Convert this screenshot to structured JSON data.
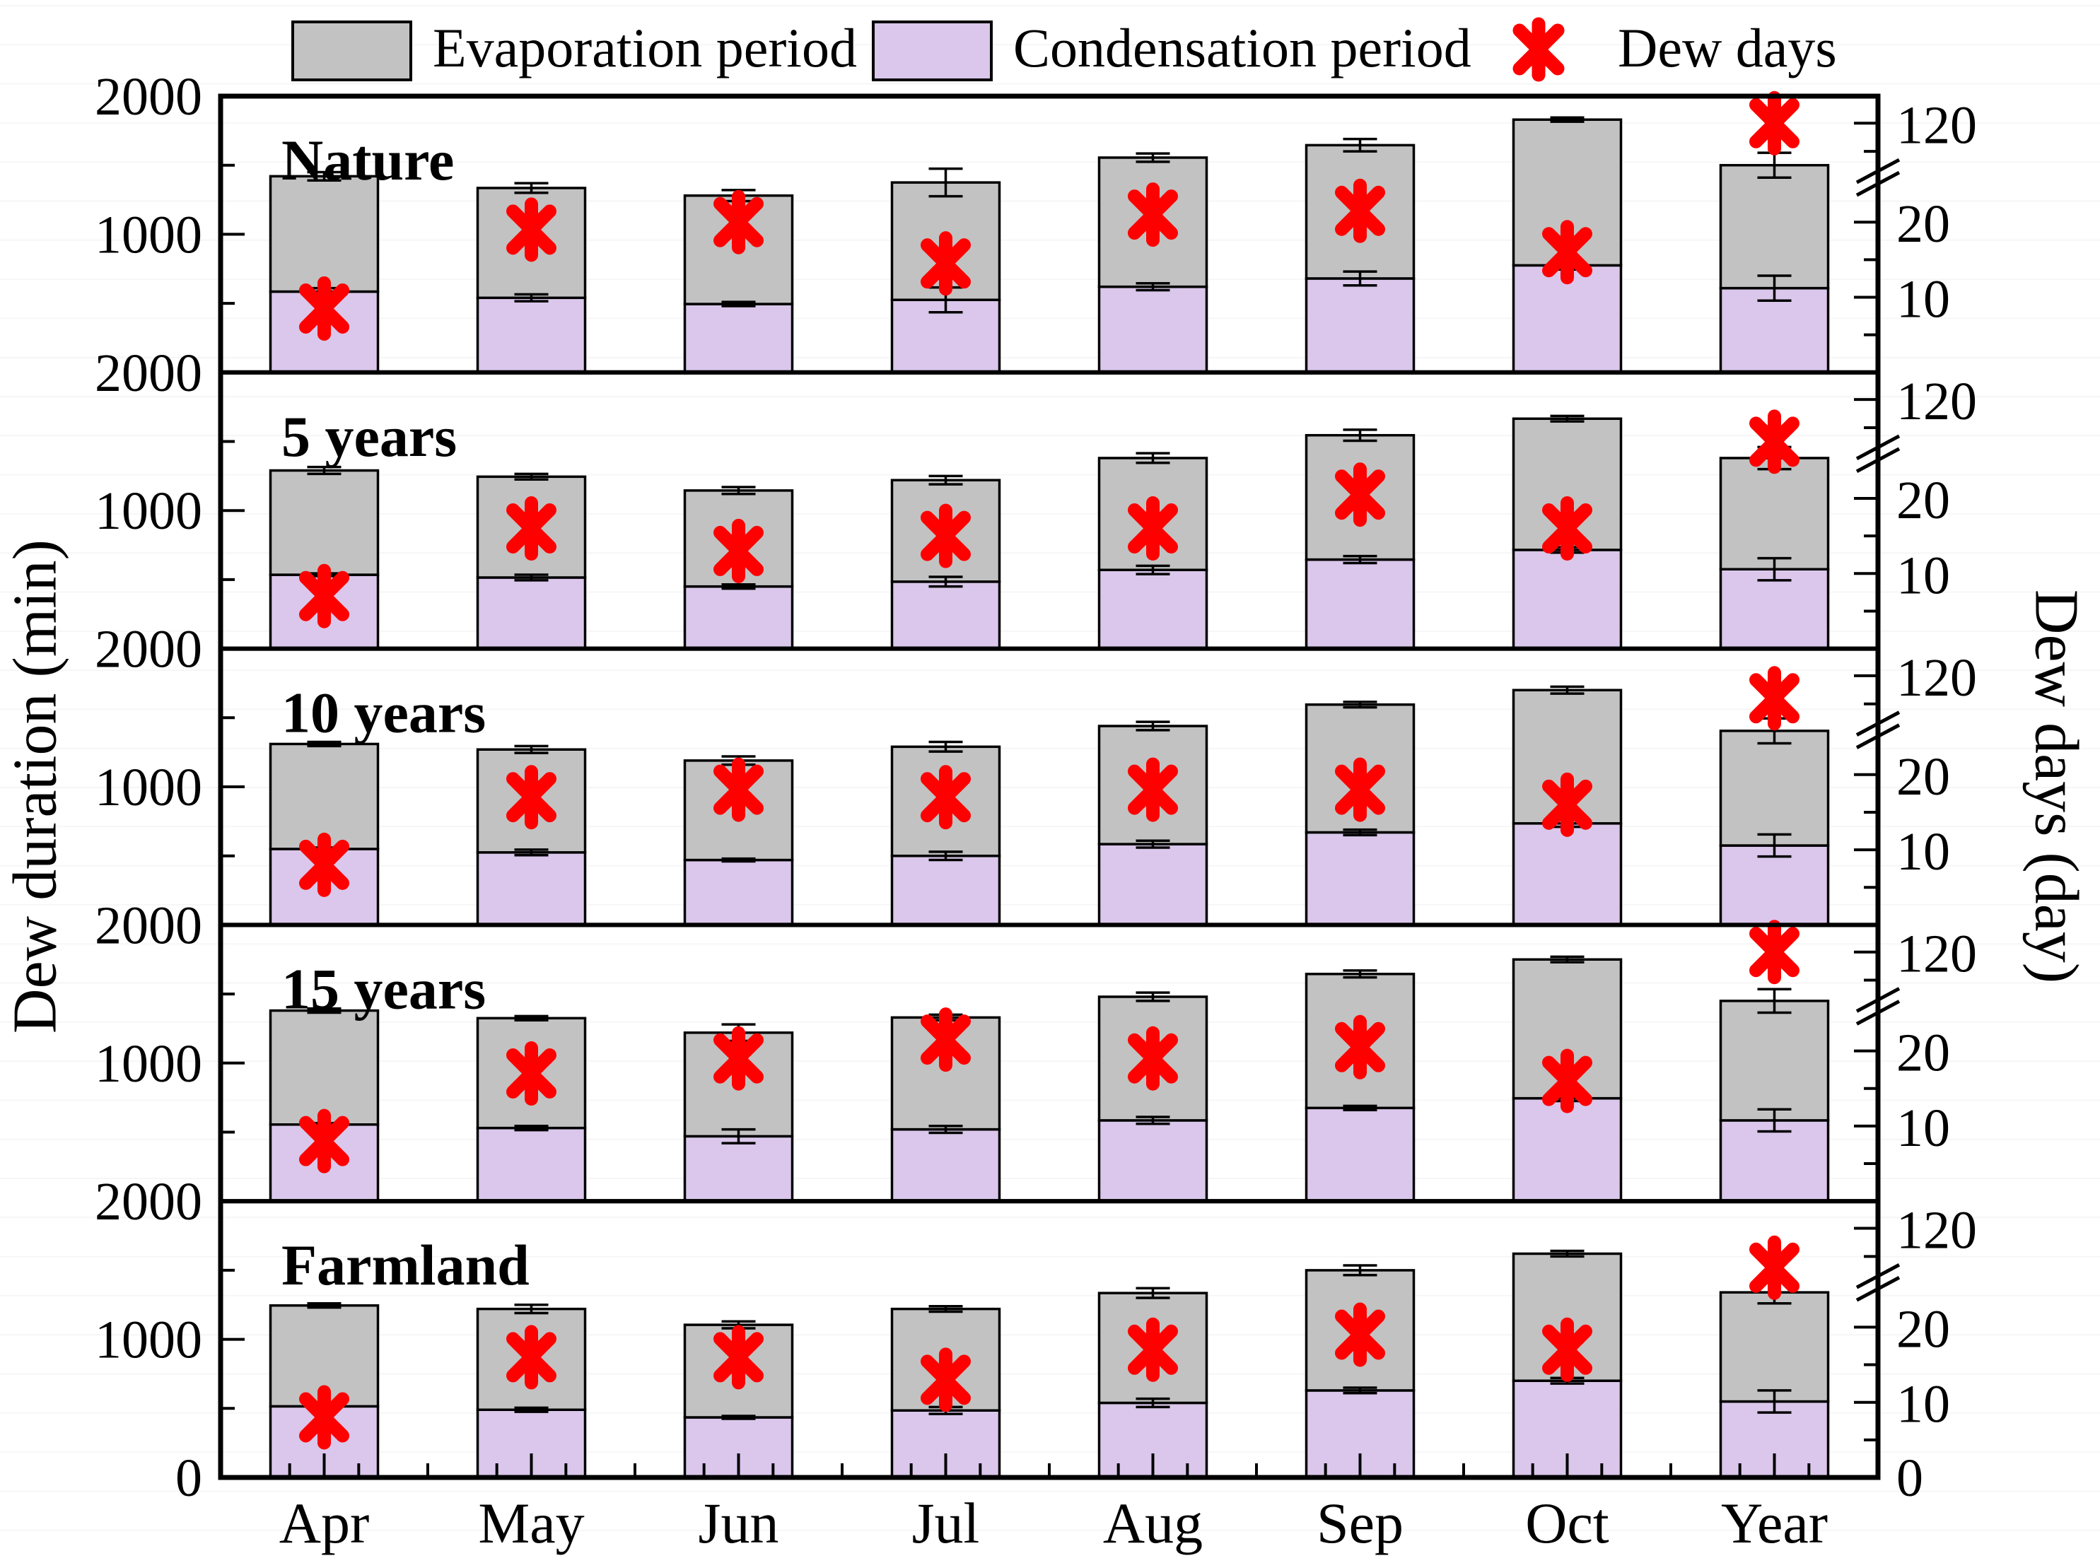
{
  "figure": {
    "background": "#ffffff"
  },
  "legend": {
    "items": [
      {
        "label": "Evaporation period",
        "swatch": "gray-rect"
      },
      {
        "label": "Condensation period",
        "swatch": "purple-rect"
      },
      {
        "label": "Dew days",
        "swatch": "red-asterisk"
      }
    ]
  },
  "axes": {
    "left_title": "Dew duration (min)",
    "right_title": "Dew days (day)"
  },
  "chart_data": {
    "type": "bar",
    "stacked": true,
    "title": "",
    "categories": [
      "Apr",
      "May",
      "Jun",
      "Jul",
      "Aug",
      "Sep",
      "Oct",
      "Year"
    ],
    "left_axis": {
      "label": "Dew duration (min)",
      "min": 0,
      "max": 2000,
      "major_ticks": [
        1000,
        2000
      ],
      "minor_ticks": [
        500,
        1500
      ],
      "top_label": "2000",
      "mid_label": "1000",
      "bottom_label": "0"
    },
    "right_axis": {
      "label": "Dew days (day)",
      "broken": true,
      "lower_segment": {
        "min": 0,
        "max": 25,
        "major_ticks": [
          10,
          20
        ],
        "minor_ticks": [
          5,
          15
        ]
      },
      "upper_segment": {
        "min": 100,
        "max": 130,
        "major_ticks": [
          120
        ],
        "minor_ticks": [
          110
        ]
      },
      "tick_labels": [
        "120",
        "20",
        "10"
      ],
      "bottom_label": "0"
    },
    "legend_entries": [
      "Evaporation period",
      "Condensation period",
      "Dew days"
    ],
    "colors": {
      "evaporation": "#c2c2c2",
      "condensation": "#dac7eb",
      "dew_days": "#fe0000",
      "edge": "#000000"
    },
    "panels": [
      {
        "title": "Nature",
        "condensation": [
          585,
          540,
          495,
          525,
          620,
          680,
          775,
          610
        ],
        "evaporation": [
          835,
          795,
          785,
          850,
          935,
          965,
          1055,
          890
        ],
        "total_err": [
          30,
          35,
          40,
          100,
          30,
          45,
          15,
          90
        ],
        "cond_err": [
          25,
          25,
          15,
          90,
          25,
          50,
          30,
          90
        ],
        "dew_days": [
          8.5,
          19,
          20,
          14.5,
          21,
          21.5,
          16,
          120
        ]
      },
      {
        "title": "5 years",
        "condensation": [
          535,
          515,
          450,
          485,
          570,
          645,
          715,
          575
        ],
        "evaporation": [
          755,
          730,
          695,
          735,
          810,
          900,
          950,
          805
        ],
        "total_err": [
          25,
          20,
          25,
          30,
          35,
          40,
          20,
          80
        ],
        "cond_err": [
          10,
          20,
          15,
          35,
          30,
          25,
          20,
          80
        ],
        "dew_days": [
          7,
          16,
          13,
          15,
          16,
          20.5,
          16,
          105
        ]
      },
      {
        "title": "10 years",
        "condensation": [
          550,
          525,
          470,
          500,
          585,
          670,
          735,
          575
        ],
        "evaporation": [
          760,
          745,
          720,
          790,
          855,
          925,
          965,
          830
        ],
        "total_err": [
          15,
          25,
          30,
          35,
          30,
          20,
          25,
          90
        ],
        "cond_err": [
          10,
          20,
          10,
          30,
          25,
          20,
          25,
          80
        ],
        "dew_days": [
          8,
          17,
          18,
          17,
          18,
          18,
          16,
          112
        ]
      },
      {
        "title": "15 years",
        "condensation": [
          555,
          530,
          470,
          520,
          585,
          675,
          745,
          585
        ],
        "evaporation": [
          825,
          795,
          750,
          810,
          895,
          970,
          1005,
          865
        ],
        "total_err": [
          15,
          15,
          60,
          20,
          30,
          25,
          20,
          85
        ],
        "cond_err": [
          10,
          15,
          50,
          25,
          25,
          15,
          20,
          80
        ],
        "dew_days": [
          8,
          17,
          19,
          21.5,
          19,
          20.5,
          16,
          120
        ]
      },
      {
        "title": "Farmland",
        "condensation": [
          515,
          490,
          435,
          485,
          540,
          630,
          700,
          550
        ],
        "evaporation": [
          730,
          730,
          670,
          735,
          795,
          870,
          920,
          790
        ],
        "total_err": [
          15,
          30,
          25,
          20,
          35,
          35,
          20,
          80
        ],
        "cond_err": [
          10,
          15,
          10,
          25,
          30,
          20,
          20,
          80
        ],
        "dew_days": [
          8,
          16,
          16,
          13,
          17,
          19,
          17,
          106
        ]
      }
    ]
  }
}
